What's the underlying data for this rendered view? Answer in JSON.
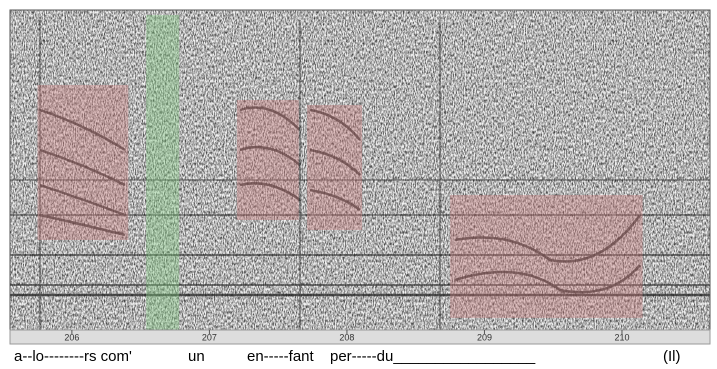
{
  "chart_data": {
    "type": "spectrogram",
    "xlim": [
      205.55,
      210.64
    ],
    "xticks": [
      206,
      207,
      208,
      209,
      210
    ],
    "regions": [
      {
        "start": 205.75,
        "end": 206.41,
        "color": "#c97a7a"
      },
      {
        "start": 206.54,
        "end": 206.78,
        "color": "#7fc87f"
      },
      {
        "start": 207.2,
        "end": 207.65,
        "color": "#c97a7a"
      },
      {
        "start": 207.71,
        "end": 208.11,
        "color": "#c97a7a"
      },
      {
        "start": 208.75,
        "end": 210.15,
        "color": "#c97a7a"
      }
    ],
    "lyrics": [
      "a--lo--------rs com'",
      "un",
      "en-----fant",
      "per-----du_________________",
      "(Il)"
    ]
  }
}
